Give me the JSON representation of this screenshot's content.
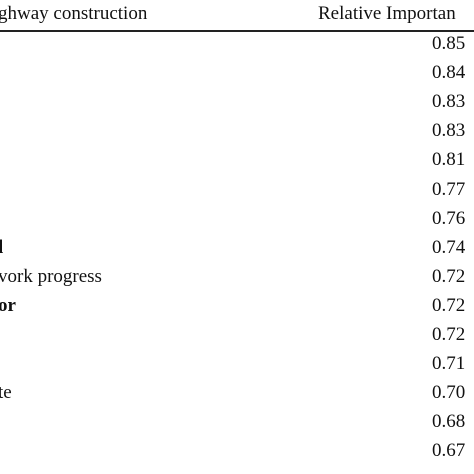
{
  "table": {
    "header_left": "ghway construction",
    "header_right": "Relative Importan",
    "rows": [
      {
        "factor": "",
        "value": "0.85",
        "bold": false
      },
      {
        "factor": "",
        "value": "0.84",
        "bold": false
      },
      {
        "factor": "",
        "value": "0.83",
        "bold": false
      },
      {
        "factor": "",
        "value": "0.83",
        "bold": false
      },
      {
        "factor": "",
        "value": "0.81",
        "bold": false
      },
      {
        "factor": "",
        "value": "0.77",
        "bold": false
      },
      {
        "factor": "",
        "value": "0.76",
        "bold": false
      },
      {
        "factor": "l",
        "value": "0.74",
        "bold": true
      },
      {
        "factor": "vork progress",
        "value": "0.72",
        "bold": false
      },
      {
        "factor": "or",
        "value": "0.72",
        "bold": true
      },
      {
        "factor": "",
        "value": "0.72",
        "bold": false
      },
      {
        "factor": "",
        "value": "0.71",
        "bold": false
      },
      {
        "factor": "te",
        "value": "0.70",
        "bold": false
      },
      {
        "factor": "",
        "value": "0.68",
        "bold": false
      },
      {
        "factor": "",
        "value": "0.67",
        "bold": false
      }
    ]
  }
}
